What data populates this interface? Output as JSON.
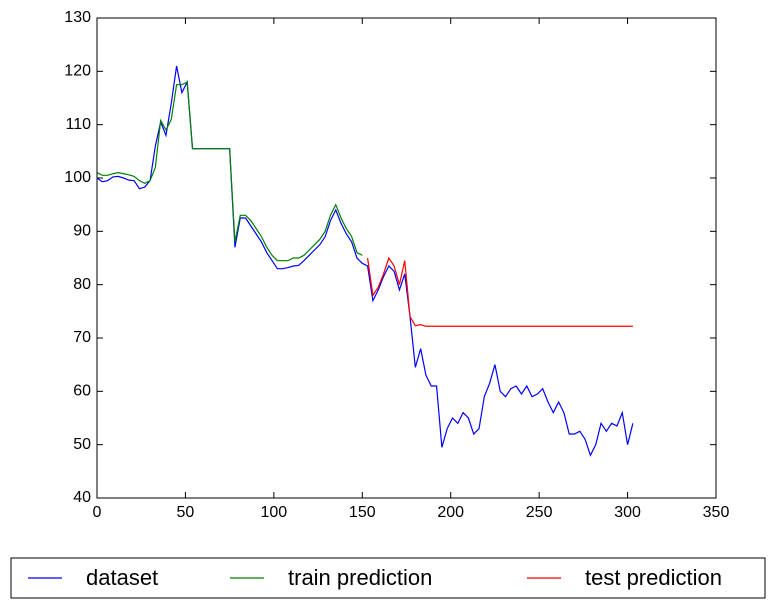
{
  "chart_data": {
    "type": "line",
    "x": [
      0,
      3,
      6,
      9,
      12,
      15,
      18,
      21,
      24,
      27,
      30,
      33,
      36,
      39,
      42,
      45,
      48,
      51,
      54,
      57,
      60,
      63,
      66,
      69,
      72,
      75,
      78,
      81,
      84,
      87,
      90,
      93,
      96,
      99,
      102,
      105,
      108,
      111,
      114,
      117,
      120,
      123,
      126,
      129,
      132,
      135,
      138,
      141,
      144,
      147,
      150,
      153,
      156,
      159,
      162,
      165,
      168,
      171,
      174,
      177,
      180,
      183,
      186,
      189,
      192,
      195,
      198,
      201,
      204,
      207,
      210,
      213,
      216,
      219,
      222,
      225,
      228,
      231,
      234,
      237,
      240,
      243,
      246,
      249,
      252,
      255,
      258,
      261,
      264,
      267,
      270,
      273,
      276,
      279,
      282,
      285,
      288,
      291,
      294,
      297,
      300,
      303
    ],
    "series": [
      {
        "name": "dataset",
        "color": "#0000ff",
        "values": [
          100,
          99.3,
          99.5,
          100.2,
          100.3,
          100,
          99.6,
          99.5,
          98,
          98.3,
          99.5,
          106,
          110.5,
          108,
          114,
          121,
          116,
          118,
          105.5,
          105.5,
          105.5,
          105.5,
          105.5,
          105.5,
          105.5,
          105.5,
          87,
          92.5,
          92.5,
          91,
          89.5,
          88,
          86,
          84.5,
          83,
          83,
          83.2,
          83.5,
          83.6,
          84.5,
          85.5,
          86.5,
          87.5,
          89,
          92,
          94,
          91.5,
          89.5,
          88,
          85,
          84,
          83.5,
          77,
          79,
          81.5,
          83.5,
          82.5,
          79,
          82,
          74,
          64.5,
          68,
          63,
          61,
          61,
          49.5,
          53,
          55,
          54,
          56,
          55,
          52,
          53,
          59,
          61.5,
          65,
          60,
          59,
          60.5,
          61,
          59.5,
          61,
          59,
          59.5,
          60.5,
          58,
          56,
          58,
          56,
          52,
          52,
          52.5,
          51,
          48,
          50,
          54,
          52.5,
          54,
          53.5,
          56,
          50,
          54
        ]
      },
      {
        "name": "train prediction",
        "color": "#008000",
        "values": [
          101,
          100.5,
          100.5,
          100.8,
          101,
          100.8,
          100.6,
          100.3,
          99.5,
          99,
          99.5,
          102,
          110.8,
          109,
          111,
          117.5,
          117.5,
          118,
          105.5,
          105.5,
          105.5,
          105.5,
          105.5,
          105.5,
          105.5,
          105.5,
          88,
          93,
          93,
          92,
          90.5,
          89,
          87,
          85.5,
          84.5,
          84.5,
          84.5,
          85,
          85,
          85.5,
          86.5,
          87.5,
          88.5,
          90,
          93,
          95,
          92.5,
          90.5,
          89,
          86,
          85.5,
          null,
          null,
          null,
          null,
          null,
          null,
          null,
          null,
          null,
          null,
          null,
          null,
          null,
          null,
          null,
          null,
          null,
          null,
          null,
          null,
          null,
          null,
          null,
          null,
          null,
          null,
          null,
          null,
          null,
          null,
          null,
          null,
          null,
          null,
          null,
          null,
          null,
          null,
          null,
          null,
          null,
          null,
          null,
          null,
          null,
          null,
          null,
          null,
          null,
          null,
          null
        ]
      },
      {
        "name": "test prediction",
        "color": "#ff0000",
        "values": [
          null,
          null,
          null,
          null,
          null,
          null,
          null,
          null,
          null,
          null,
          null,
          null,
          null,
          null,
          null,
          null,
          null,
          null,
          null,
          null,
          null,
          null,
          null,
          null,
          null,
          null,
          null,
          null,
          null,
          null,
          null,
          null,
          null,
          null,
          null,
          null,
          null,
          null,
          null,
          null,
          null,
          null,
          null,
          null,
          null,
          null,
          null,
          null,
          null,
          null,
          null,
          85,
          78,
          79.5,
          82,
          85,
          83.5,
          80,
          84.5,
          74,
          72.3,
          72.5,
          72.2,
          72.2,
          72.2,
          72.2,
          72.2,
          72.2,
          72.2,
          72.2,
          72.2,
          72.2,
          72.2,
          72.2,
          72.2,
          72.2,
          72.2,
          72.2,
          72.2,
          72.2,
          72.2,
          72.2,
          72.2,
          72.2,
          72.2,
          72.2,
          72.2,
          72.2,
          72.2,
          72.2,
          72.2,
          72.2,
          72.2,
          72.2,
          72.2,
          72.2,
          72.2,
          72.2,
          72.2,
          72.2,
          72.2,
          72.2
        ]
      }
    ],
    "xlim": [
      0,
      350
    ],
    "xticks": [
      0,
      50,
      100,
      150,
      200,
      250,
      300,
      350
    ],
    "ylim": [
      40,
      130
    ],
    "yticks": [
      40,
      50,
      60,
      70,
      80,
      90,
      100,
      110,
      120,
      130
    ],
    "legend": "bottom"
  }
}
